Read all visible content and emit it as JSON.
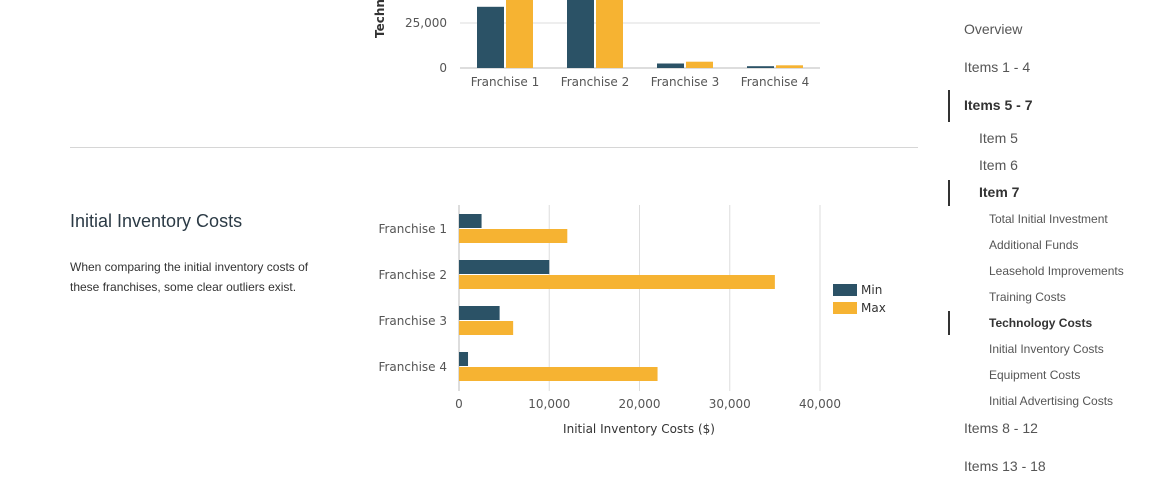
{
  "top_chart": {
    "type": "bar",
    "ylabel": "Techno",
    "categories": [
      "Franchise 1",
      "Franchise 2",
      "Franchise 3",
      "Franchise 4"
    ],
    "series": [
      {
        "name": "Min",
        "values": [
          34000,
          45000,
          2500,
          1000
        ]
      },
      {
        "name": "Max",
        "values": [
          40000,
          45000,
          3500,
          1500
        ]
      }
    ],
    "ytick_labels": [
      "0",
      "25,000"
    ],
    "colors": {
      "min": "#2b5266",
      "max": "#f6b332"
    }
  },
  "section": {
    "title": "Initial Inventory Costs",
    "description": "When comparing the initial inventory costs of these franchises, some clear outliers exist."
  },
  "chart_data": {
    "type": "bar",
    "orientation": "horizontal",
    "categories": [
      "Franchise 1",
      "Franchise 2",
      "Franchise 3",
      "Franchise 4"
    ],
    "series": [
      {
        "name": "Min",
        "values": [
          2500,
          10000,
          4500,
          1000
        ]
      },
      {
        "name": "Max",
        "values": [
          12000,
          35000,
          6000,
          22000
        ]
      }
    ],
    "xlabel": "Initial Inventory Costs ($)",
    "xlim": [
      0,
      40000
    ],
    "xtick_values": [
      0,
      10000,
      20000,
      30000,
      40000
    ],
    "xtick_labels": [
      "0",
      "10,000",
      "20,000",
      "30,000",
      "40,000"
    ],
    "grid": true,
    "legend": "right",
    "colors": {
      "min": "#2b5266",
      "max": "#f6b332"
    }
  },
  "toc": {
    "items": [
      {
        "label": "Overview",
        "level": 1,
        "active": false
      },
      {
        "label": "Items 1 - 4",
        "level": 1,
        "active": false
      },
      {
        "label": "Items 5 - 7",
        "level": 1,
        "active": true
      },
      {
        "label": "Item 5",
        "level": 2,
        "active": false
      },
      {
        "label": "Item 6",
        "level": 2,
        "active": false
      },
      {
        "label": "Item 7",
        "level": 2,
        "active": true
      },
      {
        "label": "Total Initial Investment",
        "level": 3,
        "active": false
      },
      {
        "label": "Additional Funds",
        "level": 3,
        "active": false
      },
      {
        "label": "Leasehold Improvements",
        "level": 3,
        "active": false
      },
      {
        "label": "Training Costs",
        "level": 3,
        "active": false
      },
      {
        "label": "Technology Costs",
        "level": 3,
        "active": true
      },
      {
        "label": "Initial Inventory Costs",
        "level": 3,
        "active": false
      },
      {
        "label": "Equipment Costs",
        "level": 3,
        "active": false
      },
      {
        "label": "Initial Advertising Costs",
        "level": 3,
        "active": false
      },
      {
        "label": "Items 8 - 12",
        "level": 1,
        "active": false
      },
      {
        "label": "Items 13 - 18",
        "level": 1,
        "active": false
      }
    ]
  }
}
